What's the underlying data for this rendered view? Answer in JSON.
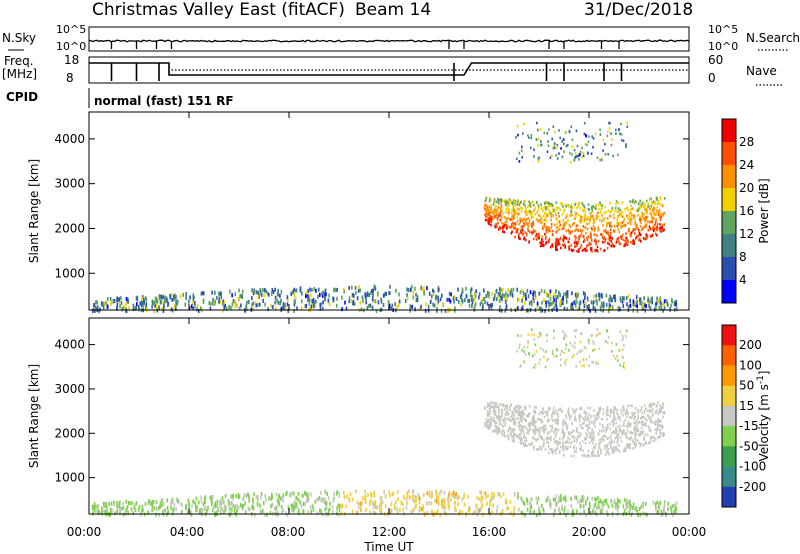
{
  "header": {
    "title": "Christmas Valley East (fitACF)",
    "beam": "Beam 14",
    "date": "31/Dec/2018"
  },
  "noise_panel": {
    "left_label": "N.Sky",
    "left_ticks": [
      "10^5",
      "10^0"
    ],
    "right_label": "N.Search",
    "right_ticks": [
      "10^5",
      "10^0"
    ]
  },
  "freq_panel": {
    "left_label_1": "Freq.",
    "left_label_2": "[MHz]",
    "left_ticks": [
      "18",
      "8"
    ],
    "right_label": "Nave",
    "right_ticks": [
      "60",
      "0"
    ]
  },
  "cpid": {
    "label": "CPID",
    "value": "normal (fast) 151 RF"
  },
  "x_axis": {
    "label": "Time UT",
    "ticks": [
      "00:00",
      "04:00",
      "08:00",
      "12:00",
      "16:00",
      "20:00",
      "00:00"
    ]
  },
  "chart_data": [
    {
      "type": "heatmap",
      "quantity": "Power",
      "xlabel": "Time UT",
      "ylabel": "Slant Range [km]",
      "x": [
        "00:00",
        "04:00",
        "08:00",
        "12:00",
        "16:00",
        "20:00",
        "00:00"
      ],
      "xlim_hours": [
        0,
        24
      ],
      "ylim": [
        180,
        4600
      ],
      "yticks": [
        1000,
        2000,
        3000,
        4000
      ],
      "colorbar": {
        "label": "Power [dB]",
        "ticks": [
          "4",
          "8",
          "12",
          "16",
          "20",
          "24",
          "28"
        ],
        "range": [
          0,
          30
        ],
        "colors": [
          "#0000ff",
          "#2b4fb0",
          "#3f8080",
          "#5ea55e",
          "#f0d000",
          "#ff9000",
          "#ff5000",
          "#ee0000"
        ]
      },
      "regions": [
        {
          "name": "near-range scatter",
          "t_start": 0.1,
          "t_end": 23.5,
          "range_km": [
            200,
            700
          ],
          "typical_value": 10
        },
        {
          "name": "far-range band",
          "t_start": 15.8,
          "t_end": 23.0,
          "range_km": [
            1500,
            2800
          ],
          "typical_value": 22
        },
        {
          "name": "upper echoes",
          "t_start": 17.0,
          "t_end": 21.5,
          "range_km": [
            3500,
            4400
          ],
          "typical_value": 10
        }
      ]
    },
    {
      "type": "heatmap",
      "quantity": "Velocity",
      "xlabel": "Time UT",
      "ylabel": "Slant Range [km]",
      "x": [
        "00:00",
        "04:00",
        "08:00",
        "12:00",
        "16:00",
        "20:00",
        "00:00"
      ],
      "xlim_hours": [
        0,
        24
      ],
      "ylim": [
        180,
        4600
      ],
      "yticks": [
        1000,
        2000,
        3000,
        4000
      ],
      "colorbar": {
        "label": "Velocity [m s^-1]",
        "ticks": [
          "200",
          "100",
          "50",
          "15",
          "-15",
          "-50",
          "-100",
          "-200"
        ],
        "range": [
          -250,
          250
        ],
        "colors": [
          "#2040b0",
          "#3a8a8a",
          "#3aa050",
          "#80d050",
          "#c8c8c0",
          "#f0d040",
          "#ff9a00",
          "#ff6000",
          "#ee1010"
        ]
      },
      "regions": [
        {
          "name": "near-range scatter",
          "t_start": 0.1,
          "t_end": 23.5,
          "range_km": [
            200,
            700
          ],
          "typical_value": 20
        },
        {
          "name": "far-range band",
          "t_start": 15.8,
          "t_end": 23.0,
          "range_km": [
            1500,
            2800
          ],
          "typical_value": 0
        },
        {
          "name": "upper echoes",
          "t_start": 17.0,
          "t_end": 21.5,
          "range_km": [
            3500,
            4400
          ],
          "typical_value": 0
        }
      ]
    }
  ]
}
